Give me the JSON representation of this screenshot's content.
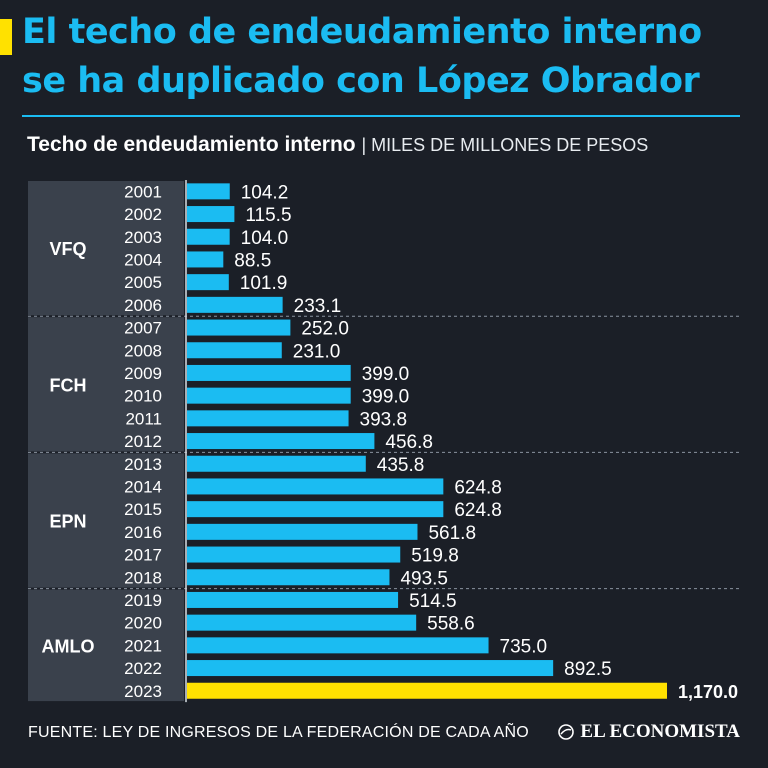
{
  "header": {
    "title_line1": "El techo de endeudamiento interno",
    "title_line2": "se ha duplicado con López Obrador"
  },
  "subtitle": {
    "main": "Techo de endeudamiento interno",
    "unit": "| MILES DE MILLONES DE PESOS"
  },
  "footer": {
    "source": "FUENTE: LEY DE INGRESOS DE LA FEDERACIÓN DE CADA AÑO",
    "brand": "EL ECONOMISTA"
  },
  "colors": {
    "bar": "#1bbcf2",
    "highlight": "#ffe100",
    "group_band": "#3a414c",
    "text": "#ffffff"
  },
  "chart_data": {
    "type": "bar",
    "orientation": "horizontal",
    "title": "Techo de endeudamiento interno",
    "unit": "Miles de millones de pesos",
    "categories": [
      "2001",
      "2002",
      "2003",
      "2004",
      "2005",
      "2006",
      "2007",
      "2008",
      "2009",
      "2010",
      "2011",
      "2012",
      "2013",
      "2014",
      "2015",
      "2016",
      "2017",
      "2018",
      "2019",
      "2020",
      "2021",
      "2022",
      "2023"
    ],
    "values": [
      104.2,
      115.5,
      104.0,
      88.5,
      101.9,
      233.1,
      252.0,
      231.0,
      399.0,
      399.0,
      393.8,
      456.8,
      435.8,
      624.8,
      624.8,
      561.8,
      519.8,
      493.5,
      514.5,
      558.6,
      735.0,
      892.5,
      1170.0
    ],
    "value_labels": [
      "104.2",
      "115.5",
      "104.0",
      "88.5",
      "101.9",
      "233.1",
      "252.0",
      "231.0",
      "399.0",
      "399.0",
      "393.8",
      "456.8",
      "435.8",
      "624.8",
      "624.8",
      "561.8",
      "519.8",
      "493.5",
      "514.5",
      "558.6",
      "735.0",
      "892.5",
      "1,170.0"
    ],
    "highlight": "2023",
    "groups": [
      {
        "label": "VFQ",
        "start": 0,
        "count": 6
      },
      {
        "label": "FCH",
        "start": 6,
        "count": 6
      },
      {
        "label": "EPN",
        "start": 12,
        "count": 6
      },
      {
        "label": "AMLO",
        "start": 18,
        "count": 5
      }
    ],
    "xlim": [
      0,
      1170
    ]
  }
}
